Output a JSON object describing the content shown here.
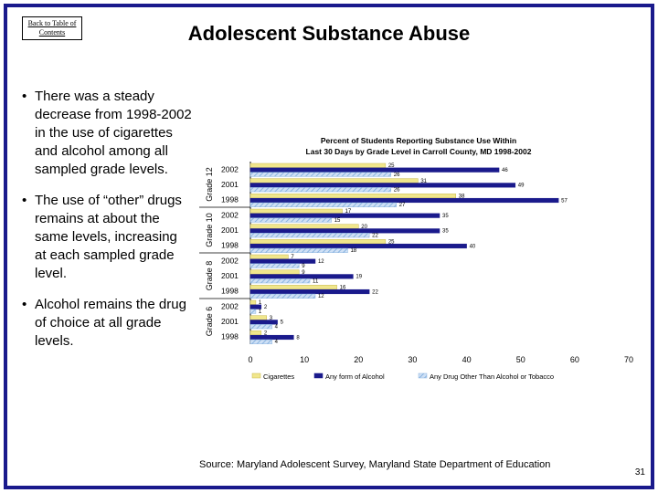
{
  "back_link": "Back to Table of Contents",
  "title": "Adolescent Substance Abuse",
  "bullets": [
    "There was a steady decrease from 1998-2002 in the use of cigarettes and alcohol among all sampled grade levels.",
    "The use of “other” drugs remains at about the same levels, increasing at each sampled grade level.",
    "Alcohol remains the drug of choice at all grade levels."
  ],
  "bullet_glyph": "•",
  "source": "Source: Maryland Adolescent Survey, Maryland State Department of Education",
  "page_number": "31",
  "colors": {
    "frame": "#1a1a8c",
    "cigarettes": "#f0e68c",
    "alcohol": "#1a1a8c",
    "other": "#8ab4e0"
  },
  "chart_data": {
    "type": "bar",
    "orientation": "horizontal",
    "title": "Percent of Students Reporting Substance Use Within Last 30 Days by Grade Level in Carroll County, MD 1998-2002",
    "title_lines": [
      "Percent of Students Reporting Substance Use Within",
      "Last 30 Days by Grade Level in Carroll County, MD 1998-2002"
    ],
    "xlim": [
      0,
      70
    ],
    "xticks": [
      0,
      10,
      20,
      30,
      40,
      50,
      60,
      70
    ],
    "groups": [
      {
        "grade": "Grade 12",
        "years": [
          {
            "year": "2002",
            "cigarettes": 25,
            "alcohol": 46,
            "other": 26
          },
          {
            "year": "2001",
            "cigarettes": 31,
            "alcohol": 49,
            "other": 26
          },
          {
            "year": "1998",
            "cigarettes": 38,
            "alcohol": 57,
            "other": 27
          }
        ]
      },
      {
        "grade": "Grade 10",
        "years": [
          {
            "year": "2002",
            "cigarettes": 17,
            "alcohol": 35,
            "other": 15
          },
          {
            "year": "2001",
            "cigarettes": 20,
            "alcohol": 35,
            "other": 22
          },
          {
            "year": "1998",
            "cigarettes": 25,
            "alcohol": 40,
            "other": 18
          }
        ]
      },
      {
        "grade": "Grade 8",
        "years": [
          {
            "year": "2002",
            "cigarettes": 7,
            "alcohol": 12,
            "other": 9
          },
          {
            "year": "2001",
            "cigarettes": 9,
            "alcohol": 19,
            "other": 11
          },
          {
            "year": "1998",
            "cigarettes": 16,
            "alcohol": 22,
            "other": 12
          }
        ]
      },
      {
        "grade": "Grade 6",
        "years": [
          {
            "year": "2002",
            "cigarettes": 1,
            "alcohol": 2,
            "other": 1
          },
          {
            "year": "2001",
            "cigarettes": 3,
            "alcohol": 5,
            "other": 4
          },
          {
            "year": "1998",
            "cigarettes": 2,
            "alcohol": 8,
            "other": 4
          }
        ]
      }
    ],
    "series": [
      {
        "key": "cigarettes",
        "name": "Cigarettes"
      },
      {
        "key": "alcohol",
        "name": "Any form of Alcohol"
      },
      {
        "key": "other",
        "name": "Any Drug Other Than Alcohol or Tobacco"
      }
    ],
    "legend": "bottom"
  }
}
